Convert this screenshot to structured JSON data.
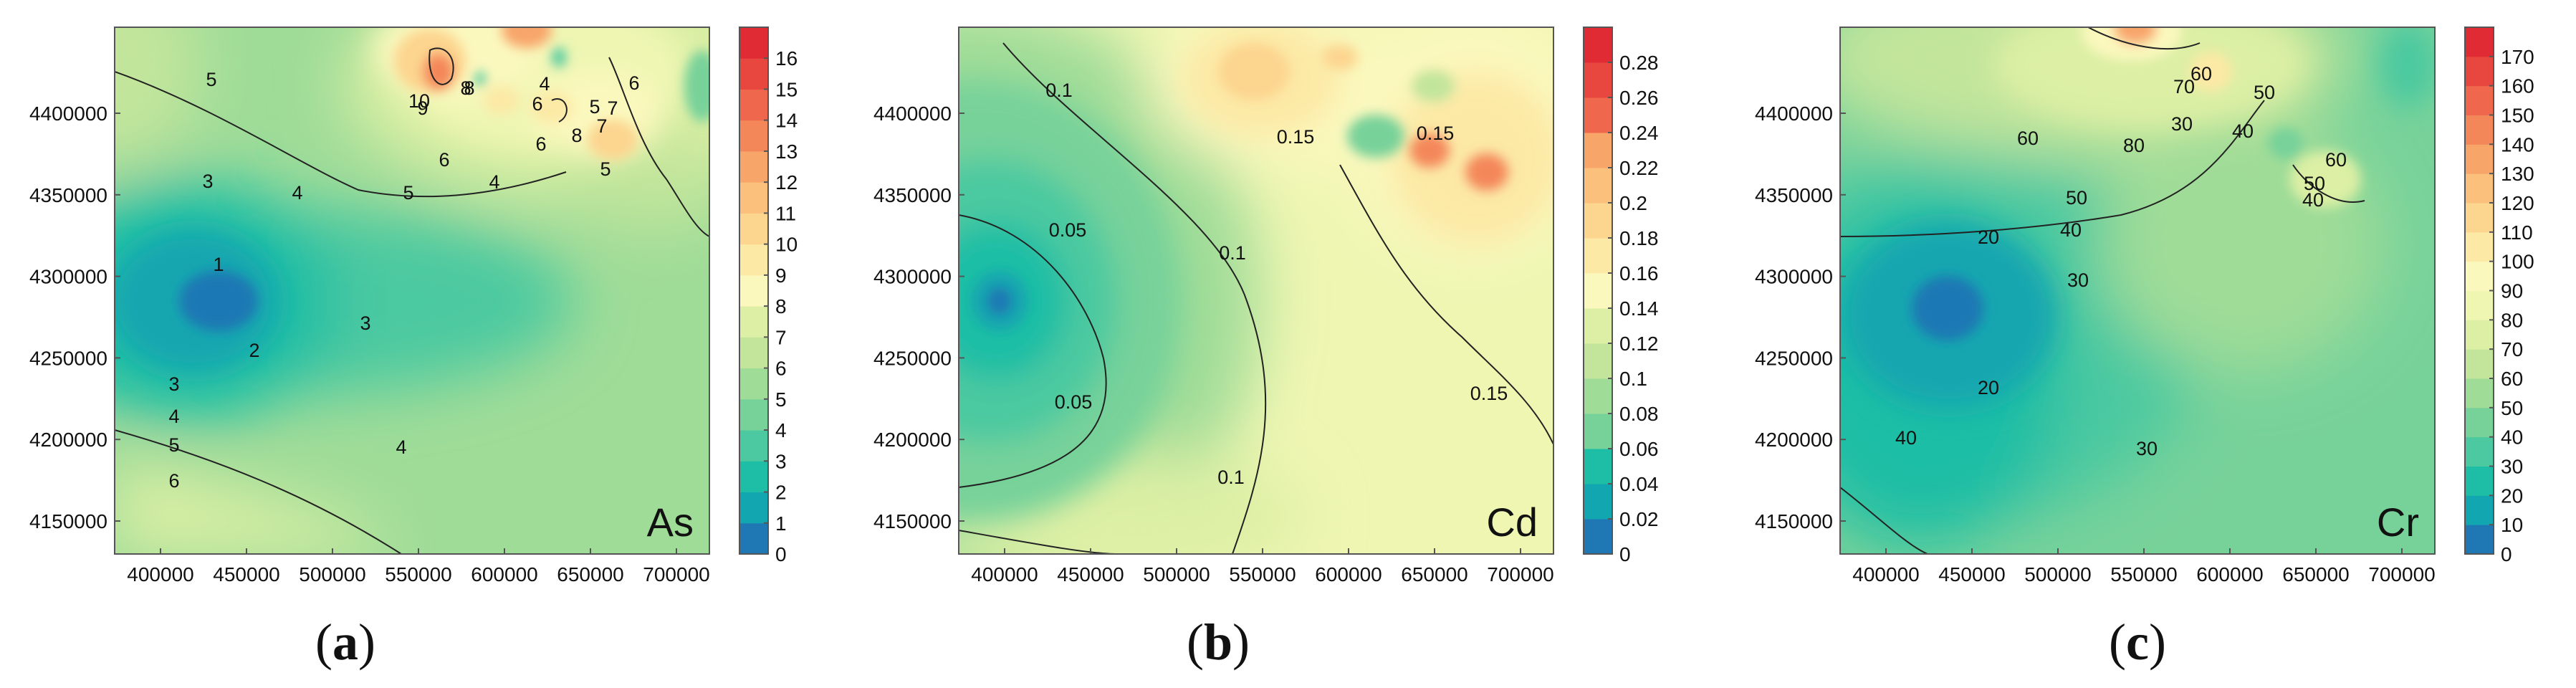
{
  "chart_data": [
    {
      "type": "contour",
      "element": "As",
      "caption_letter": "a",
      "x_ticks": [
        "400000",
        "450000",
        "500000",
        "550000",
        "600000",
        "650000",
        "700000"
      ],
      "y_ticks": [
        "4150000",
        "4200000",
        "4250000",
        "4300000",
        "4350000",
        "4400000"
      ],
      "colorbar_ticks": [
        "0",
        "1",
        "2",
        "3",
        "4",
        "5",
        "6",
        "7",
        "8",
        "9",
        "10",
        "11",
        "12",
        "13",
        "14",
        "15",
        "16"
      ],
      "colorbar_range": [
        0,
        17
      ],
      "contour_labels": [
        "5",
        "3",
        "4",
        "1",
        "2",
        "3",
        "3",
        "4",
        "5",
        "6",
        "4",
        "5",
        "6",
        "4",
        "4",
        "5",
        "6",
        "5",
        "6",
        "7",
        "7",
        "8",
        "6",
        "10",
        "9",
        "8",
        "8"
      ]
    },
    {
      "type": "contour",
      "element": "Cd",
      "caption_letter": "b",
      "x_ticks": [
        "400000",
        "450000",
        "500000",
        "550000",
        "600000",
        "650000",
        "700000"
      ],
      "y_ticks": [
        "4150000",
        "4200000",
        "4250000",
        "4300000",
        "4350000",
        "4400000"
      ],
      "colorbar_ticks": [
        "0",
        "0.02",
        "0.04",
        "0.06",
        "0.08",
        "0.1",
        "0.12",
        "0.14",
        "0.16",
        "0.18",
        "0.2",
        "0.22",
        "0.24",
        "0.26",
        "0.28"
      ],
      "colorbar_range": [
        0,
        0.3
      ],
      "contour_labels": [
        "0.1",
        "0.05",
        "0.05",
        "0.1",
        "0.1",
        "0.15",
        "0.15",
        "0.15"
      ]
    },
    {
      "type": "contour",
      "element": "Cr",
      "caption_letter": "c",
      "x_ticks": [
        "400000",
        "450000",
        "500000",
        "550000",
        "600000",
        "650000",
        "700000"
      ],
      "y_ticks": [
        "4150000",
        "4200000",
        "4250000",
        "4300000",
        "4350000",
        "4400000"
      ],
      "colorbar_ticks": [
        "0",
        "10",
        "20",
        "30",
        "40",
        "50",
        "60",
        "70",
        "80",
        "90",
        "100",
        "110",
        "120",
        "130",
        "140",
        "150",
        "160",
        "170"
      ],
      "colorbar_range": [
        0,
        180
      ],
      "contour_labels": [
        "60",
        "80",
        "70",
        "60",
        "50",
        "40",
        "50",
        "40",
        "30",
        "20",
        "20",
        "30",
        "40",
        "30",
        "40",
        "60",
        "50"
      ]
    }
  ],
  "colors": {
    "scale": [
      "#1f78b4",
      "#12a6b0",
      "#1dbea5",
      "#4cc9a0",
      "#77d29a",
      "#9fdc98",
      "#c2e59b",
      "#dcefa4",
      "#eef6b2",
      "#fbf8be",
      "#fce9a6",
      "#fcd58f",
      "#fbc07c",
      "#f8a56a",
      "#f4875a",
      "#ef674c",
      "#e8473f",
      "#e02b34"
    ],
    "frame": "#555555",
    "contour": "#222222"
  }
}
